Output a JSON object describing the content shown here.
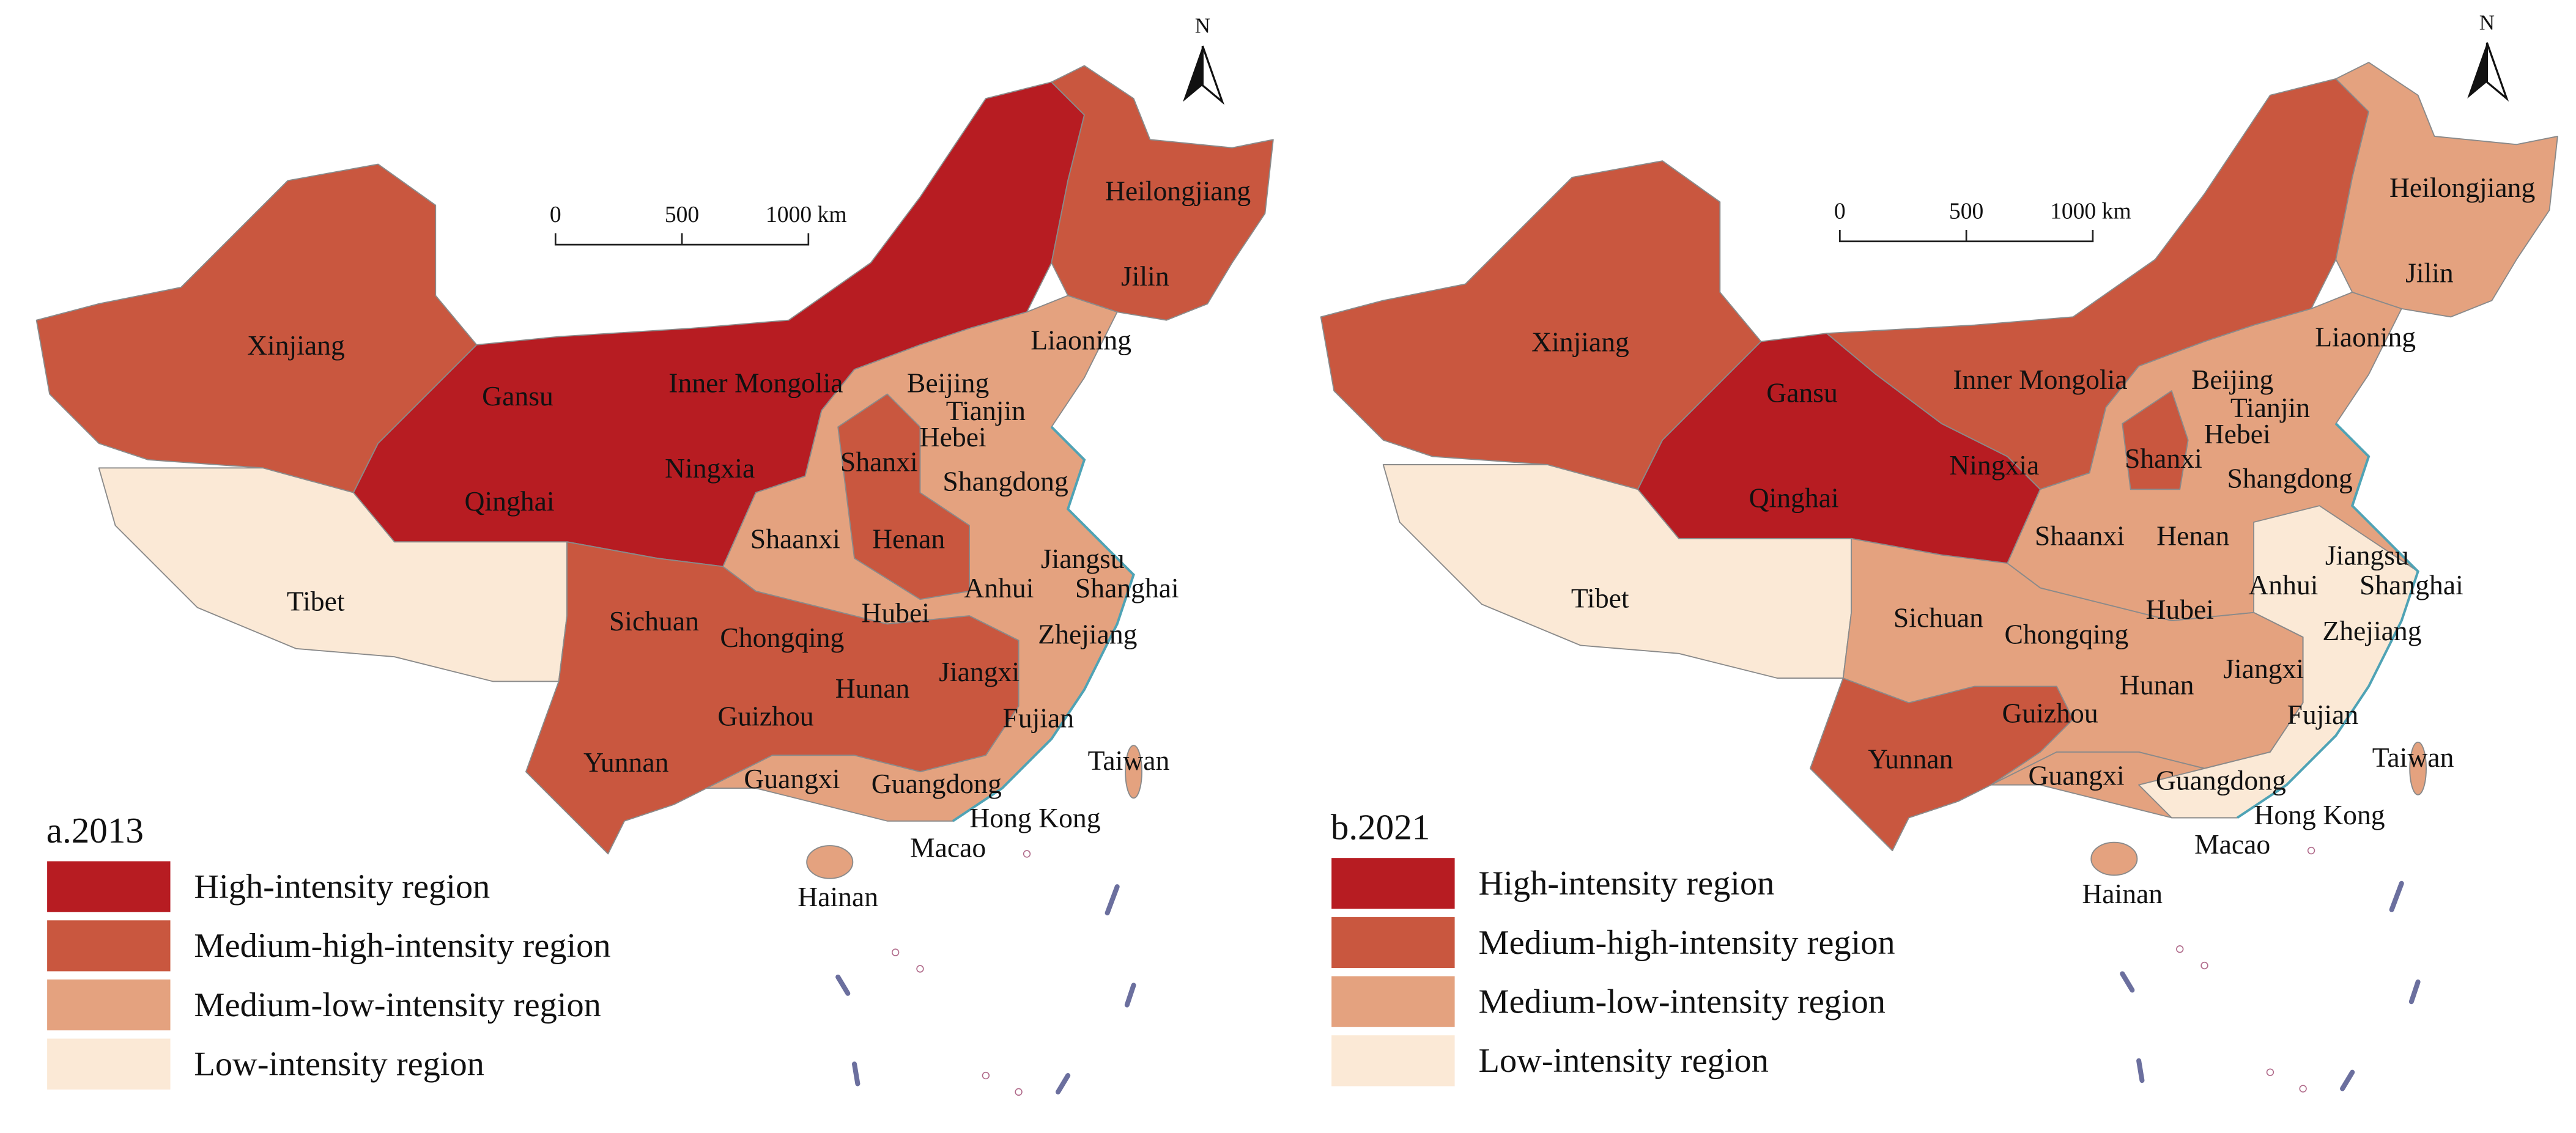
{
  "maps": [
    {
      "title": "a.2013",
      "labels": [
        "Xinjiang",
        "Gansu",
        "Inner Mongolia",
        "Qinghai",
        "Ningxia",
        "Tibet",
        "Heilongjiang",
        "Jilin",
        "Liaoning",
        "Beijing",
        "Tianjin",
        "Hebei",
        "Shanxi",
        "Shangdong",
        "Shaanxi",
        "Henan",
        "Jiangsu",
        "Anhui",
        "Shanghai",
        "Sichuan",
        "Chongqing",
        "Hubei",
        "Zhejiang",
        "Hunan",
        "Jiangxi",
        "Guizhou",
        "Fujian",
        "Yunnan",
        "Taiwan",
        "Guangxi",
        "Guangdong",
        "Hong Kong",
        "Macao",
        "Hainan"
      ]
    },
    {
      "title": "b.2021",
      "labels": [
        "Xinjiang",
        "Gansu",
        "Inner Mongolia",
        "Qinghai",
        "Ningxia",
        "Tibet",
        "Heilongjiang",
        "Jilin",
        "Liaoning",
        "Beijing",
        "Tianjin",
        "Hebei",
        "Shanxi",
        "Shangdong",
        "Shaanxi",
        "Henan",
        "Jiangsu",
        "Anhui",
        "Shanghai",
        "Sichuan",
        "Chongqing",
        "Hubei",
        "Zhejiang",
        "Hunan",
        "Jiangxi",
        "Guizhou",
        "Fujian",
        "Yunnan",
        "Taiwan",
        "Guangxi",
        "Guangdong",
        "Hong Kong",
        "Macao",
        "Hainan"
      ]
    }
  ],
  "legend": [
    {
      "label": "High-intensity region",
      "color": "#b71c22"
    },
    {
      "label": "Medium-high-intensity region",
      "color": "#c9573f"
    },
    {
      "label": "Medium-low-intensity region",
      "color": "#e4a27f"
    },
    {
      "label": "Low-intensity region",
      "color": "#fbe9d6"
    }
  ],
  "scale_bar": [
    "0",
    "500",
    "1000 km"
  ],
  "north": "N"
}
